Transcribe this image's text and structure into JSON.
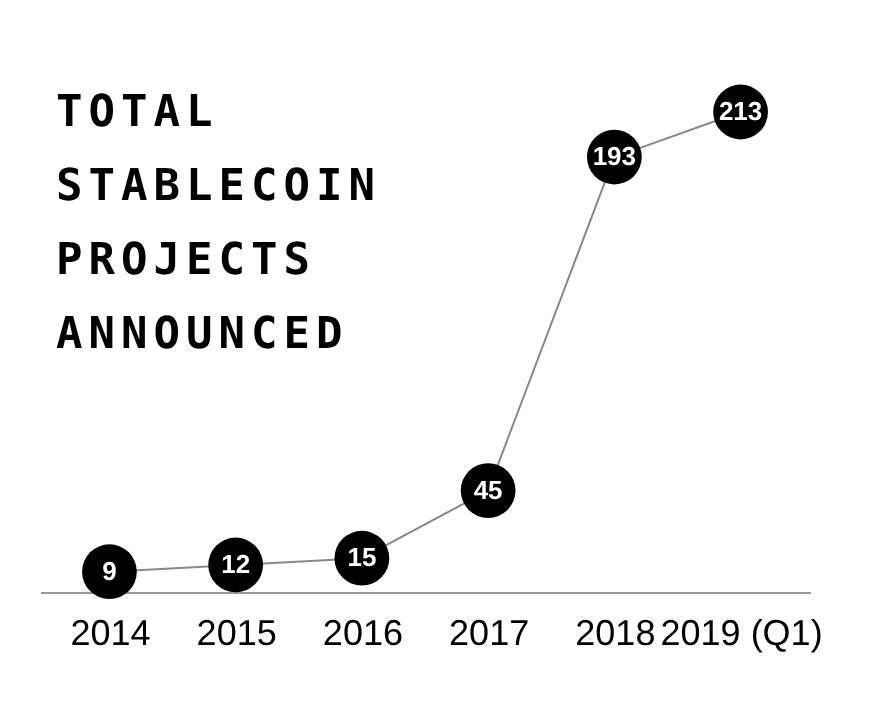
{
  "chart_data": {
    "type": "line",
    "title": "TOTAL STABLECOIN PROJECTS ANNOUNCED",
    "categories": [
      "2014",
      "2015",
      "2016",
      "2017",
      "2018",
      "2019 (Q1)"
    ],
    "values": [
      9,
      12,
      15,
      45,
      193,
      213
    ],
    "marker": "circle",
    "data_labels": true
  }
}
